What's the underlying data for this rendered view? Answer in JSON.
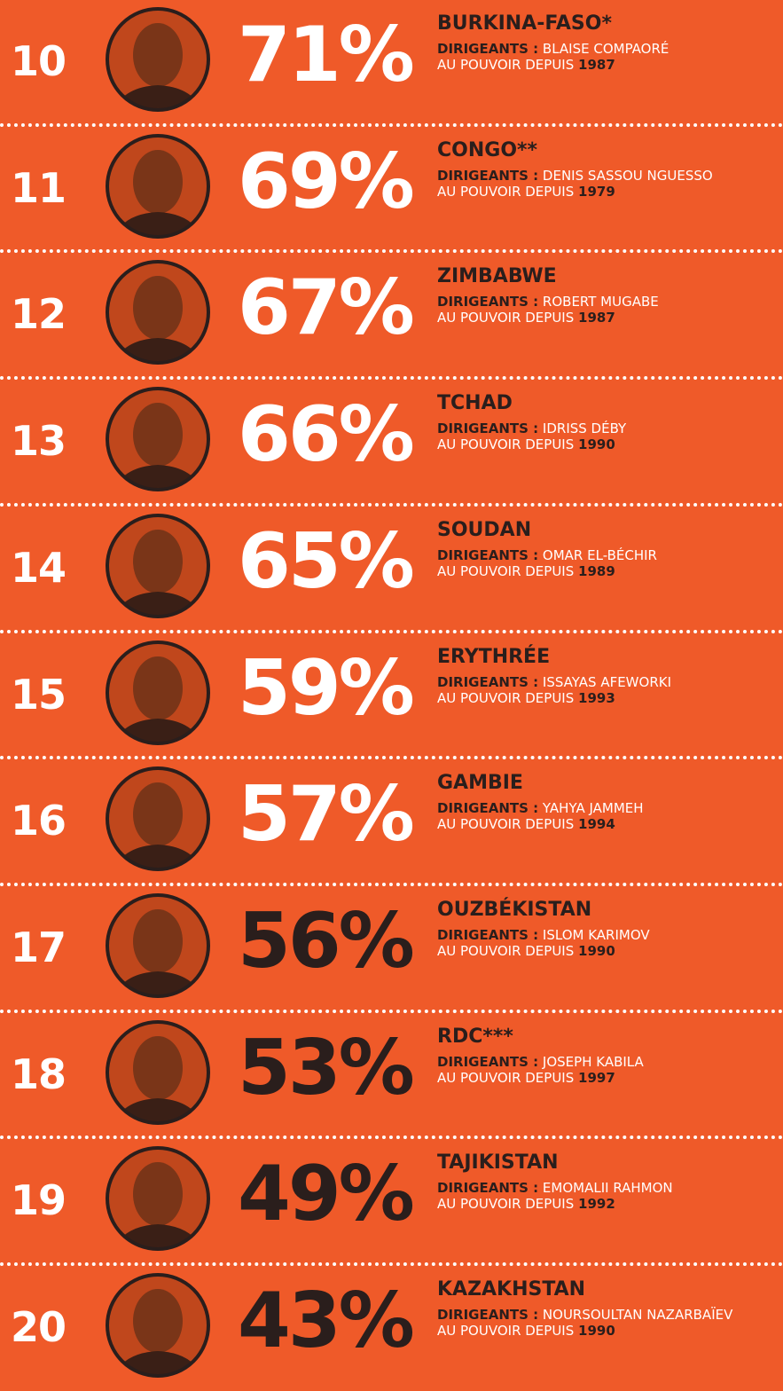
{
  "leader_label": "DIRIGEANTS :",
  "since_label": "AU POUVOIR DEPUIS",
  "rows": [
    {
      "rank": "10",
      "percent": "71%",
      "percent_color": "#ffffff",
      "country": "BURKINA-FASO*",
      "leader": "BLAISE COMPAORÉ",
      "since": "1987"
    },
    {
      "rank": "11",
      "percent": "69%",
      "percent_color": "#ffffff",
      "country": "CONGO**",
      "leader": "DENIS SASSOU NGUESSO",
      "since": "1979"
    },
    {
      "rank": "12",
      "percent": "67%",
      "percent_color": "#ffffff",
      "country": "ZIMBABWE",
      "leader": "ROBERT MUGABE",
      "since": "1987"
    },
    {
      "rank": "13",
      "percent": "66%",
      "percent_color": "#ffffff",
      "country": "TCHAD",
      "leader": "IDRISS DÉBY",
      "since": "1990"
    },
    {
      "rank": "14",
      "percent": "65%",
      "percent_color": "#ffffff",
      "country": "SOUDAN",
      "leader": "OMAR EL-BÉCHIR",
      "since": "1989"
    },
    {
      "rank": "15",
      "percent": "59%",
      "percent_color": "#ffffff",
      "country": "ERYTHRÉE",
      "leader": "ISSAYAS AFEWORKI",
      "since": "1993"
    },
    {
      "rank": "16",
      "percent": "57%",
      "percent_color": "#ffffff",
      "country": "GAMBIE",
      "leader": "YAHYA JAMMEH",
      "since": "1994"
    },
    {
      "rank": "17",
      "percent": "56%",
      "percent_color": "#2a1e1c",
      "country": "OUZBÉKISTAN",
      "leader": "ISLOM KARIMOV",
      "since": "1990"
    },
    {
      "rank": "18",
      "percent": "53%",
      "percent_color": "#2a1e1c",
      "country": "RDC***",
      "leader": "JOSEPH KABILA",
      "since": "1997"
    },
    {
      "rank": "19",
      "percent": "49%",
      "percent_color": "#2a1e1c",
      "country": "TAJIKISTAN",
      "leader": "EMOMALII RAHMON",
      "since": "1992"
    },
    {
      "rank": "20",
      "percent": "43%",
      "percent_color": "#2a1e1c",
      "country": "KAZAKHSTAN",
      "leader": "NOURSOULTAN NAZARBAÏEV",
      "since": "1990"
    }
  ]
}
